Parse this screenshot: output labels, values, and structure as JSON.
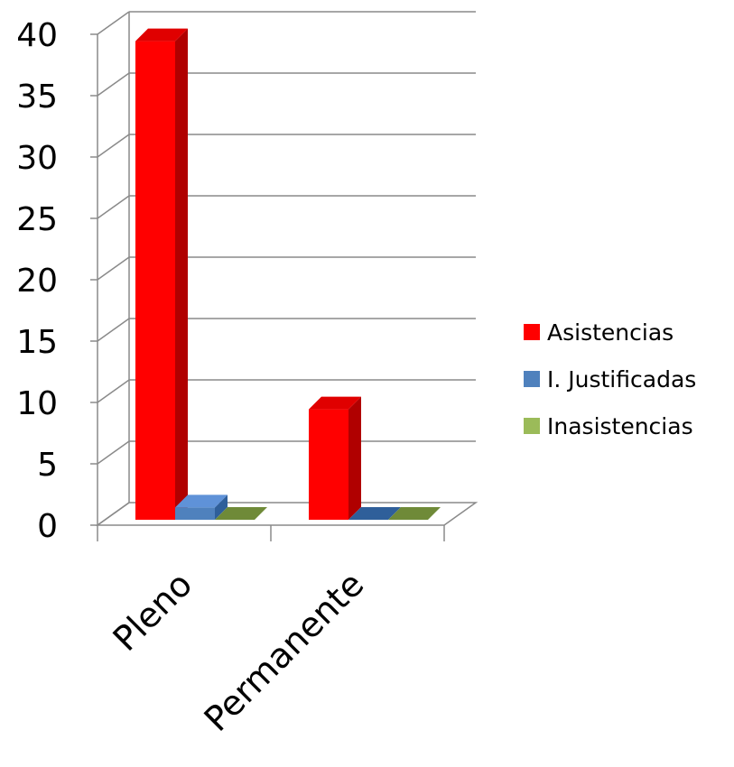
{
  "chart_data": {
    "type": "bar",
    "categories": [
      "Pleno",
      "Permanente"
    ],
    "series": [
      {
        "name": "Asistencias",
        "values": [
          39,
          9
        ],
        "color": "#ff0000",
        "side": "#b00000",
        "top": "#e00000"
      },
      {
        "name": "I. Justificadas",
        "values": [
          1,
          0
        ],
        "color": "#4f81bd",
        "side": "#2f5f9a",
        "top": "#5f92d8"
      },
      {
        "name": "Inasistencias",
        "values": [
          0,
          0
        ],
        "color": "#9bbb59",
        "side": "#6f8a38",
        "top": "#6f8a38"
      }
    ],
    "yticks": [
      0,
      5,
      10,
      15,
      20,
      25,
      30,
      35,
      40
    ],
    "ylim": [
      0,
      40
    ],
    "grid": true,
    "legend_position": "right"
  }
}
